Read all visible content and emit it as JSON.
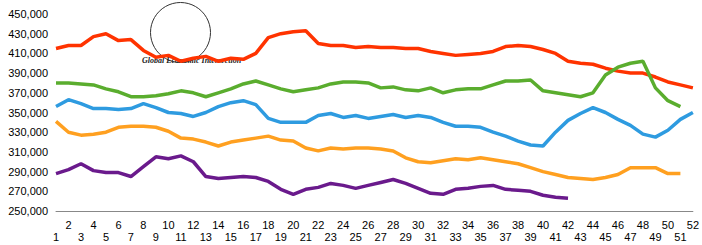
{
  "chart_data": {
    "type": "line",
    "annotations": [
      {
        "text": "Global Economic Intersection"
      }
    ],
    "categories": [
      "1",
      "2",
      "3",
      "4",
      "5",
      "6",
      "7",
      "8",
      "9",
      "10",
      "11",
      "12",
      "13",
      "14",
      "15",
      "16",
      "17",
      "18",
      "19",
      "20",
      "21",
      "22",
      "23",
      "24",
      "25",
      "26",
      "27",
      "28",
      "29",
      "30",
      "31",
      "32",
      "33",
      "34",
      "35",
      "36",
      "37",
      "38",
      "39",
      "40",
      "41",
      "42",
      "43",
      "44",
      "45",
      "46",
      "47",
      "48",
      "49",
      "50",
      "51",
      "52"
    ],
    "series": [
      {
        "color": "#ff3300",
        "values": [
          415000,
          418000,
          418000,
          427000,
          430000,
          423000,
          424000,
          413000,
          406000,
          408000,
          402000,
          405000,
          407000,
          402000,
          405000,
          404000,
          410000,
          426000,
          430000,
          432000,
          433000,
          420000,
          418000,
          418000,
          416000,
          417000,
          416000,
          416000,
          415000,
          415000,
          412000,
          410000,
          408000,
          409000,
          410000,
          412000,
          417000,
          418000,
          417000,
          414000,
          410000,
          402000,
          400000,
          399000,
          395000,
          392000,
          390000,
          390000,
          386000,
          381000,
          378000,
          375000
        ]
      },
      {
        "color": "#5aad2e",
        "values": [
          380000,
          380000,
          379000,
          378000,
          374000,
          371000,
          366000,
          366000,
          367000,
          369000,
          372000,
          370000,
          366000,
          370000,
          374000,
          379000,
          382000,
          378000,
          374000,
          371000,
          373000,
          375000,
          379000,
          381000,
          381000,
          380000,
          375000,
          376000,
          373000,
          372000,
          375000,
          370000,
          373000,
          374000,
          374000,
          378000,
          382000,
          382000,
          383000,
          372000,
          370000,
          368000,
          366000,
          370000,
          388000,
          396000,
          400000,
          402000,
          375000,
          362000,
          356000,
          null
        ]
      },
      {
        "color": "#2e9be0",
        "values": [
          356000,
          363000,
          359000,
          354000,
          354000,
          353000,
          354000,
          359000,
          355000,
          350000,
          349000,
          346000,
          350000,
          356000,
          360000,
          362000,
          358000,
          344000,
          340000,
          340000,
          340000,
          347000,
          349000,
          345000,
          347000,
          344000,
          346000,
          348000,
          345000,
          347000,
          345000,
          340000,
          336000,
          336000,
          335000,
          330000,
          326000,
          321000,
          317000,
          316000,
          330000,
          342000,
          349000,
          355000,
          350000,
          343000,
          337000,
          328000,
          325000,
          332000,
          343000,
          350000
        ]
      },
      {
        "color": "#ffa020",
        "values": [
          341000,
          330000,
          327000,
          328000,
          330000,
          335000,
          336000,
          336000,
          335000,
          331000,
          324000,
          323000,
          320000,
          316000,
          320000,
          322000,
          324000,
          326000,
          322000,
          321000,
          314000,
          311000,
          314000,
          313000,
          314000,
          314000,
          313000,
          311000,
          304000,
          300000,
          299000,
          301000,
          303000,
          302000,
          304000,
          302000,
          300000,
          298000,
          294000,
          290000,
          287000,
          284000,
          283000,
          282000,
          284000,
          287000,
          294000,
          294000,
          294000,
          288000,
          288000,
          null
        ]
      },
      {
        "color": "#6a1a8c",
        "values": [
          288000,
          292000,
          298000,
          291000,
          289000,
          289000,
          285000,
          295000,
          305000,
          303000,
          306000,
          300000,
          285000,
          283000,
          284000,
          285000,
          284000,
          280000,
          272000,
          267000,
          272000,
          274000,
          278000,
          276000,
          273000,
          276000,
          279000,
          282000,
          278000,
          273000,
          268000,
          267000,
          272000,
          273000,
          275000,
          276000,
          272000,
          271000,
          270000,
          266000,
          264000,
          263000,
          null,
          null,
          null,
          null,
          null,
          null,
          null,
          null,
          null,
          null
        ]
      }
    ],
    "ylim": [
      250000,
      450000
    ],
    "yticks": [
      {
        "value": 250000,
        "label": "250,000"
      },
      {
        "value": 270000,
        "label": "270,000"
      },
      {
        "value": 290000,
        "label": "290,000"
      },
      {
        "value": 310000,
        "label": "310,000"
      },
      {
        "value": 330000,
        "label": "330,000"
      },
      {
        "value": 350000,
        "label": "350,000"
      },
      {
        "value": 370000,
        "label": "370,000"
      },
      {
        "value": 390000,
        "label": "390,000"
      },
      {
        "value": 410000,
        "label": "410,000"
      },
      {
        "value": 430000,
        "label": "430,000"
      },
      {
        "value": 450000,
        "label": "450,000"
      }
    ],
    "grid": false
  }
}
